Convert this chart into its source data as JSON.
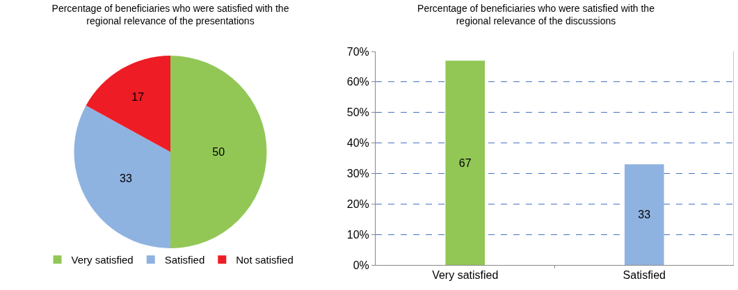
{
  "chart_data": [
    {
      "type": "pie",
      "title": "Percentage of beneficiaries who were satisfied with the\nregional relevance of the presentations",
      "categories": [
        "Very satisfied",
        "Satisfied",
        "Not satisfied"
      ],
      "values": [
        50,
        33,
        17
      ],
      "colors": [
        "#92c756",
        "#8fb3e0",
        "#ee1c25"
      ],
      "data_labels": true,
      "legend": "bottom"
    },
    {
      "type": "bar",
      "title": "Percentage of beneficiaries who were satisfied with the\nregional relevance of the discussions",
      "categories": [
        "Very satisfied",
        "Satisfied"
      ],
      "values": [
        67,
        33
      ],
      "colors": [
        "#92c756",
        "#8fb3e0"
      ],
      "data_labels": true,
      "ylim": [
        0,
        70
      ],
      "yticks": [
        {
          "value": 0,
          "label": "0%"
        },
        {
          "value": 10,
          "label": "10%"
        },
        {
          "value": 20,
          "label": "20%"
        },
        {
          "value": 30,
          "label": "30%"
        },
        {
          "value": 40,
          "label": "40%"
        },
        {
          "value": 50,
          "label": "50%"
        },
        {
          "value": 60,
          "label": "60%"
        },
        {
          "value": 70,
          "label": "70%"
        }
      ],
      "grid": "y"
    }
  ]
}
